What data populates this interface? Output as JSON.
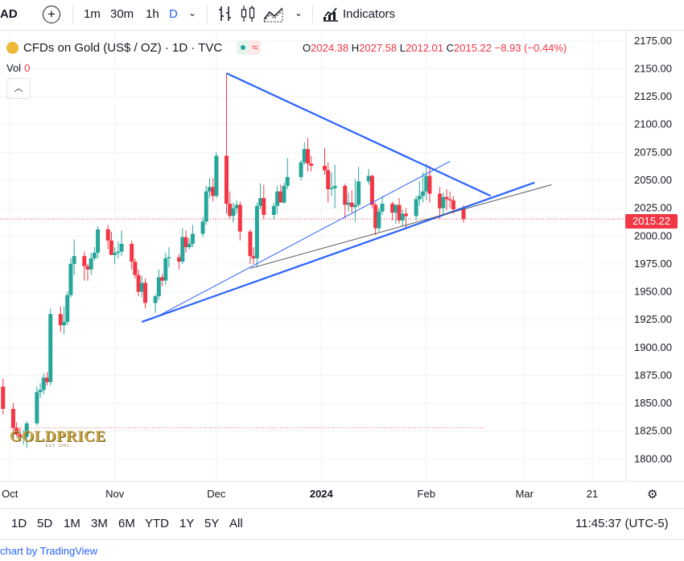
{
  "toolbar": {
    "symbol_tail": "AD",
    "intervals": [
      {
        "label": "1m",
        "active": false
      },
      {
        "label": "30m",
        "active": false
      },
      {
        "label": "1h",
        "active": false
      },
      {
        "label": "D",
        "active": true
      }
    ],
    "indicators_label": "Indicators"
  },
  "legend": {
    "title": "CFDs on Gold (US$ / OZ) · 1D · TVC",
    "ohlc": {
      "o_key": "O",
      "o": "2024.38",
      "h_key": "H",
      "h": "2027.58",
      "l_key": "L",
      "l": "2012.01",
      "c_key": "C",
      "c": "2015.22",
      "chg": "−8.93 (−0.44%)"
    },
    "vol_label": "Vol",
    "vol_value": "0"
  },
  "current_price_label": "2015.22",
  "watermark": {
    "name": "GOLDPRICE",
    "est": "EST. 2002"
  },
  "bottom": {
    "ranges": [
      "1D",
      "5D",
      "1M",
      "3M",
      "6M",
      "YTD",
      "1Y",
      "5Y",
      "All"
    ],
    "clock": "11:45:37 (UTC-5)"
  },
  "footer_text": "chart by TradingView",
  "colors": {
    "up": "#26a69a",
    "down": "#f23645",
    "trend": "#2962ff",
    "accent": "#2962ff"
  },
  "chart_data": {
    "type": "candlestick",
    "title": "CFDs on Gold (US$ / OZ) · 1D · TVC",
    "ylim": [
      1780,
      2185
    ],
    "yticks": [
      1800,
      1825,
      1850,
      1875,
      1900,
      1925,
      1950,
      1975,
      2000,
      2025,
      2050,
      2075,
      2100,
      2125,
      2150,
      2175
    ],
    "x_labels": [
      {
        "date": "2023-10-01",
        "text": "Oct",
        "bold": false
      },
      {
        "date": "2023-11-01",
        "text": "Nov",
        "bold": false
      },
      {
        "date": "2023-12-01",
        "text": "Dec",
        "bold": false
      },
      {
        "date": "2024-01-01",
        "text": "2024",
        "bold": true
      },
      {
        "date": "2024-02-01",
        "text": "Feb",
        "bold": false
      },
      {
        "date": "2024-03-01",
        "text": "Mar",
        "bold": false
      },
      {
        "date": "2024-03-21",
        "text": "21",
        "bold": false
      }
    ],
    "x_range": [
      "2023-09-30",
      "2024-03-31"
    ],
    "candles": [
      {
        "d": "2023-09-29",
        "o": 1865,
        "h": 1872,
        "l": 1840,
        "c": 1845
      },
      {
        "d": "2023-10-02",
        "o": 1845,
        "h": 1850,
        "l": 1825,
        "c": 1828
      },
      {
        "d": "2023-10-03",
        "o": 1828,
        "h": 1833,
        "l": 1820,
        "c": 1822
      },
      {
        "d": "2023-10-04",
        "o": 1822,
        "h": 1828,
        "l": 1818,
        "c": 1820
      },
      {
        "d": "2023-10-05",
        "o": 1820,
        "h": 1826,
        "l": 1813,
        "c": 1820
      },
      {
        "d": "2023-10-06",
        "o": 1820,
        "h": 1834,
        "l": 1810,
        "c": 1832
      },
      {
        "d": "2023-10-09",
        "o": 1832,
        "h": 1865,
        "l": 1830,
        "c": 1860
      },
      {
        "d": "2023-10-10",
        "o": 1860,
        "h": 1868,
        "l": 1855,
        "c": 1862
      },
      {
        "d": "2023-10-11",
        "o": 1862,
        "h": 1877,
        "l": 1858,
        "c": 1873
      },
      {
        "d": "2023-10-12",
        "o": 1873,
        "h": 1878,
        "l": 1866,
        "c": 1869
      },
      {
        "d": "2023-10-13",
        "o": 1869,
        "h": 1935,
        "l": 1866,
        "c": 1930
      },
      {
        "d": "2023-10-16",
        "o": 1930,
        "h": 1937,
        "l": 1914,
        "c": 1920
      },
      {
        "d": "2023-10-17",
        "o": 1920,
        "h": 1937,
        "l": 1912,
        "c": 1923
      },
      {
        "d": "2023-10-18",
        "o": 1923,
        "h": 1950,
        "l": 1920,
        "c": 1947
      },
      {
        "d": "2023-10-19",
        "o": 1947,
        "h": 1980,
        "l": 1945,
        "c": 1975
      },
      {
        "d": "2023-10-20",
        "o": 1975,
        "h": 1997,
        "l": 1965,
        "c": 1982
      },
      {
        "d": "2023-10-23",
        "o": 1982,
        "h": 1986,
        "l": 1960,
        "c": 1973
      },
      {
        "d": "2023-10-24",
        "o": 1973,
        "h": 1975,
        "l": 1960,
        "c": 1970
      },
      {
        "d": "2023-10-25",
        "o": 1970,
        "h": 1985,
        "l": 1965,
        "c": 1980
      },
      {
        "d": "2023-10-26",
        "o": 1980,
        "h": 1990,
        "l": 1978,
        "c": 1985
      },
      {
        "d": "2023-10-27",
        "o": 1985,
        "h": 2009,
        "l": 1980,
        "c": 2006
      },
      {
        "d": "2023-10-30",
        "o": 2006,
        "h": 2010,
        "l": 1988,
        "c": 1996
      },
      {
        "d": "2023-10-31",
        "o": 1996,
        "h": 2004,
        "l": 1984,
        "c": 1983
      },
      {
        "d": "2023-11-01",
        "o": 1983,
        "h": 1990,
        "l": 1975,
        "c": 1985
      },
      {
        "d": "2023-11-02",
        "o": 1985,
        "h": 1995,
        "l": 1980,
        "c": 1986
      },
      {
        "d": "2023-11-03",
        "o": 1986,
        "h": 2005,
        "l": 1982,
        "c": 1993
      },
      {
        "d": "2023-11-06",
        "o": 1993,
        "h": 1996,
        "l": 1970,
        "c": 1977
      },
      {
        "d": "2023-11-07",
        "o": 1977,
        "h": 1980,
        "l": 1962,
        "c": 1965
      },
      {
        "d": "2023-11-08",
        "o": 1965,
        "h": 1970,
        "l": 1946,
        "c": 1950
      },
      {
        "d": "2023-11-09",
        "o": 1950,
        "h": 1964,
        "l": 1945,
        "c": 1958
      },
      {
        "d": "2023-11-10",
        "o": 1958,
        "h": 1962,
        "l": 1935,
        "c": 1940
      },
      {
        "d": "2023-11-13",
        "o": 1940,
        "h": 1948,
        "l": 1931,
        "c": 1946
      },
      {
        "d": "2023-11-14",
        "o": 1946,
        "h": 1970,
        "l": 1943,
        "c": 1963
      },
      {
        "d": "2023-11-15",
        "o": 1963,
        "h": 1966,
        "l": 1955,
        "c": 1960
      },
      {
        "d": "2023-11-16",
        "o": 1960,
        "h": 1985,
        "l": 1956,
        "c": 1980
      },
      {
        "d": "2023-11-17",
        "o": 1980,
        "h": 1990,
        "l": 1972,
        "c": 1981
      },
      {
        "d": "2023-11-20",
        "o": 1981,
        "h": 1984,
        "l": 1970,
        "c": 1977
      },
      {
        "d": "2023-11-21",
        "o": 1977,
        "h": 2007,
        "l": 1975,
        "c": 1999
      },
      {
        "d": "2023-11-22",
        "o": 1999,
        "h": 2005,
        "l": 1985,
        "c": 1990
      },
      {
        "d": "2023-11-23",
        "o": 1990,
        "h": 1998,
        "l": 1988,
        "c": 1993
      },
      {
        "d": "2023-11-24",
        "o": 1993,
        "h": 2010,
        "l": 1990,
        "c": 2002
      },
      {
        "d": "2023-11-27",
        "o": 2002,
        "h": 2017,
        "l": 1999,
        "c": 2013
      },
      {
        "d": "2023-11-28",
        "o": 2013,
        "h": 2045,
        "l": 2010,
        "c": 2040
      },
      {
        "d": "2023-11-29",
        "o": 2040,
        "h": 2052,
        "l": 2034,
        "c": 2044
      },
      {
        "d": "2023-11-30",
        "o": 2044,
        "h": 2052,
        "l": 2031,
        "c": 2036
      },
      {
        "d": "2023-12-01",
        "o": 2036,
        "h": 2075,
        "l": 2034,
        "c": 2072
      },
      {
        "d": "2023-12-04",
        "o": 2072,
        "h": 2146,
        "l": 2020,
        "c": 2029
      },
      {
        "d": "2023-12-05",
        "o": 2029,
        "h": 2040,
        "l": 2015,
        "c": 2018
      },
      {
        "d": "2023-12-06",
        "o": 2018,
        "h": 2030,
        "l": 2012,
        "c": 2025
      },
      {
        "d": "2023-12-07",
        "o": 2025,
        "h": 2032,
        "l": 2020,
        "c": 2028
      },
      {
        "d": "2023-12-08",
        "o": 2028,
        "h": 2031,
        "l": 1996,
        "c": 2004
      },
      {
        "d": "2023-12-11",
        "o": 2004,
        "h": 2006,
        "l": 1975,
        "c": 1982
      },
      {
        "d": "2023-12-12",
        "o": 1982,
        "h": 1990,
        "l": 1975,
        "c": 1980
      },
      {
        "d": "2023-12-13",
        "o": 1980,
        "h": 2030,
        "l": 1972,
        "c": 2027
      },
      {
        "d": "2023-12-14",
        "o": 2027,
        "h": 2047,
        "l": 2024,
        "c": 2034
      },
      {
        "d": "2023-12-15",
        "o": 2034,
        "h": 2046,
        "l": 2015,
        "c": 2019
      },
      {
        "d": "2023-12-18",
        "o": 2019,
        "h": 2030,
        "l": 2015,
        "c": 2027
      },
      {
        "d": "2023-12-19",
        "o": 2027,
        "h": 2045,
        "l": 2020,
        "c": 2040
      },
      {
        "d": "2023-12-20",
        "o": 2040,
        "h": 2046,
        "l": 2030,
        "c": 2030
      },
      {
        "d": "2023-12-21",
        "o": 2030,
        "h": 2048,
        "l": 2029,
        "c": 2045
      },
      {
        "d": "2023-12-22",
        "o": 2045,
        "h": 2070,
        "l": 2042,
        "c": 2053
      },
      {
        "d": "2023-12-26",
        "o": 2053,
        "h": 2068,
        "l": 2050,
        "c": 2066
      },
      {
        "d": "2023-12-27",
        "o": 2066,
        "h": 2084,
        "l": 2064,
        "c": 2078
      },
      {
        "d": "2023-12-28",
        "o": 2078,
        "h": 2088,
        "l": 2058,
        "c": 2065
      },
      {
        "d": "2023-12-29",
        "o": 2065,
        "h": 2072,
        "l": 2058,
        "c": 2063
      },
      {
        "d": "2024-01-02",
        "o": 2063,
        "h": 2079,
        "l": 2055,
        "c": 2059
      },
      {
        "d": "2024-01-03",
        "o": 2059,
        "h": 2066,
        "l": 2030,
        "c": 2042
      },
      {
        "d": "2024-01-04",
        "o": 2042,
        "h": 2057,
        "l": 2036,
        "c": 2043
      },
      {
        "d": "2024-01-05",
        "o": 2043,
        "h": 2064,
        "l": 2025,
        "c": 2045
      },
      {
        "d": "2024-01-08",
        "o": 2045,
        "h": 2047,
        "l": 2016,
        "c": 2028
      },
      {
        "d": "2024-01-09",
        "o": 2028,
        "h": 2039,
        "l": 2022,
        "c": 2030
      },
      {
        "d": "2024-01-10",
        "o": 2030,
        "h": 2041,
        "l": 2021,
        "c": 2026
      },
      {
        "d": "2024-01-11",
        "o": 2026,
        "h": 2051,
        "l": 2013,
        "c": 2028
      },
      {
        "d": "2024-01-12",
        "o": 2028,
        "h": 2062,
        "l": 2026,
        "c": 2049
      },
      {
        "d": "2024-01-15",
        "o": 2049,
        "h": 2060,
        "l": 2046,
        "c": 2054
      },
      {
        "d": "2024-01-16",
        "o": 2054,
        "h": 2055,
        "l": 2025,
        "c": 2028
      },
      {
        "d": "2024-01-17",
        "o": 2028,
        "h": 2030,
        "l": 2001,
        "c": 2007
      },
      {
        "d": "2024-01-18",
        "o": 2007,
        "h": 2025,
        "l": 2004,
        "c": 2022
      },
      {
        "d": "2024-01-19",
        "o": 2022,
        "h": 2036,
        "l": 2019,
        "c": 2029
      },
      {
        "d": "2024-01-22",
        "o": 2029,
        "h": 2031,
        "l": 2014,
        "c": 2021
      },
      {
        "d": "2024-01-23",
        "o": 2021,
        "h": 2026,
        "l": 2011,
        "c": 2028
      },
      {
        "d": "2024-01-24",
        "o": 2028,
        "h": 2034,
        "l": 2011,
        "c": 2014
      },
      {
        "d": "2024-01-25",
        "o": 2014,
        "h": 2024,
        "l": 2009,
        "c": 2020
      },
      {
        "d": "2024-01-26",
        "o": 2020,
        "h": 2025,
        "l": 2008,
        "c": 2018
      },
      {
        "d": "2024-01-29",
        "o": 2018,
        "h": 2036,
        "l": 2014,
        "c": 2033
      },
      {
        "d": "2024-01-30",
        "o": 2033,
        "h": 2049,
        "l": 2027,
        "c": 2036
      },
      {
        "d": "2024-01-31",
        "o": 2036,
        "h": 2057,
        "l": 2030,
        "c": 2040
      },
      {
        "d": "2024-02-01",
        "o": 2040,
        "h": 2065,
        "l": 2032,
        "c": 2054
      },
      {
        "d": "2024-02-02",
        "o": 2054,
        "h": 2063,
        "l": 2030,
        "c": 2038
      },
      {
        "d": "2024-02-05",
        "o": 2038,
        "h": 2044,
        "l": 2015,
        "c": 2025
      },
      {
        "d": "2024-02-06",
        "o": 2025,
        "h": 2039,
        "l": 2019,
        "c": 2035
      },
      {
        "d": "2024-02-07",
        "o": 2035,
        "h": 2042,
        "l": 2023,
        "c": 2033
      },
      {
        "d": "2024-02-08",
        "o": 2033,
        "h": 2040,
        "l": 2025,
        "c": 2032
      },
      {
        "d": "2024-02-09",
        "o": 2032,
        "h": 2036,
        "l": 2020,
        "c": 2024
      },
      {
        "d": "2024-02-12",
        "o": 2024.38,
        "h": 2027.58,
        "l": 2012.01,
        "c": 2015.22
      }
    ],
    "trendlines": [
      {
        "from": {
          "d": "2023-12-04",
          "p": 2146
        },
        "to": {
          "d": "2024-02-20",
          "p": 2036
        },
        "width": 2.2,
        "color": "#2962ff"
      },
      {
        "from": {
          "d": "2023-11-09",
          "p": 1923
        },
        "to": {
          "d": "2024-03-04",
          "p": 2048
        },
        "width": 2.2,
        "color": "#2962ff"
      },
      {
        "from": {
          "d": "2023-11-13",
          "p": 1927
        },
        "to": {
          "d": "2024-02-08",
          "p": 2067
        },
        "width": 1,
        "color": "#2962ff"
      },
      {
        "from": {
          "d": "2023-12-11",
          "p": 1971
        },
        "to": {
          "d": "2024-03-09",
          "p": 2046
        },
        "width": 1,
        "color": "#555555"
      }
    ],
    "price_line": 2015.22,
    "support_line": 1828
  }
}
